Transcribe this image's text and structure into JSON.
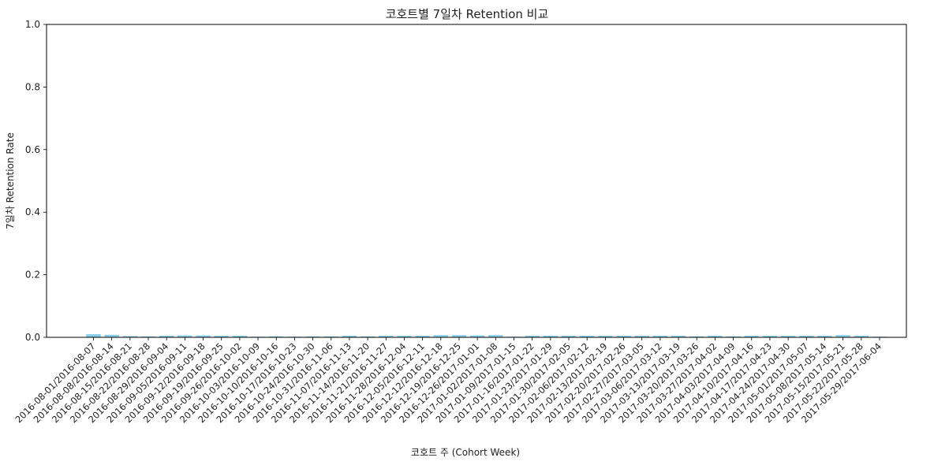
{
  "chart_data": {
    "type": "bar",
    "title": "코호트별 7일차 Retention 비교",
    "xlabel": "코호트 주 (Cohort Week)",
    "ylabel": "7일차 Retention Rate",
    "ylim": [
      0,
      1.0
    ],
    "yticks": [
      "0.0",
      "0.2",
      "0.4",
      "0.6",
      "0.8",
      "1.0"
    ],
    "grid": false,
    "bar_color": "#87ceeb",
    "categories": [
      "2016-08-01/2016-08-07",
      "2016-08-08/2016-08-14",
      "2016-08-15/2016-08-21",
      "2016-08-22/2016-08-28",
      "2016-08-29/2016-09-04",
      "2016-09-05/2016-09-11",
      "2016-09-12/2016-09-18",
      "2016-09-19/2016-09-25",
      "2016-09-26/2016-10-02",
      "2016-10-03/2016-10-09",
      "2016-10-10/2016-10-16",
      "2016-10-17/2016-10-23",
      "2016-10-24/2016-10-30",
      "2016-10-31/2016-11-06",
      "2016-11-07/2016-11-13",
      "2016-11-14/2016-11-20",
      "2016-11-21/2016-11-27",
      "2016-11-28/2016-12-04",
      "2016-12-05/2016-12-11",
      "2016-12-12/2016-12-18",
      "2016-12-19/2016-12-25",
      "2016-12-26/2017-01-01",
      "2017-01-02/2017-01-08",
      "2017-01-09/2017-01-15",
      "2017-01-16/2017-01-22",
      "2017-01-23/2017-01-29",
      "2017-01-30/2017-02-05",
      "2017-02-06/2017-02-12",
      "2017-02-13/2017-02-19",
      "2017-02-20/2017-02-26",
      "2017-02-27/2017-03-05",
      "2017-03-06/2017-03-12",
      "2017-03-13/2017-03-19",
      "2017-03-20/2017-03-26",
      "2017-03-27/2017-04-02",
      "2017-04-03/2017-04-09",
      "2017-04-10/2017-04-16",
      "2017-04-17/2017-04-23",
      "2017-04-24/2017-04-30",
      "2017-05-01/2017-05-07",
      "2017-05-08/2017-05-14",
      "2017-05-15/2017-05-21",
      "2017-05-22/2017-05-28",
      "2017-05-29/2017-06-04"
    ],
    "values": [
      0.01,
      0.008,
      0.004,
      0.003,
      0.005,
      0.006,
      0.006,
      0.005,
      0.005,
      0.002,
      0.003,
      0.002,
      0.003,
      0.003,
      0.005,
      0.003,
      0.005,
      0.005,
      0.005,
      0.007,
      0.007,
      0.006,
      0.007,
      0.002,
      0.005,
      0.005,
      0.005,
      0.005,
      0.005,
      0.005,
      0.005,
      0.005,
      0.005,
      0.003,
      0.005,
      0.003,
      0.005,
      0.005,
      0.005,
      0.005,
      0.005,
      0.007,
      0.005,
      0.002
    ]
  }
}
